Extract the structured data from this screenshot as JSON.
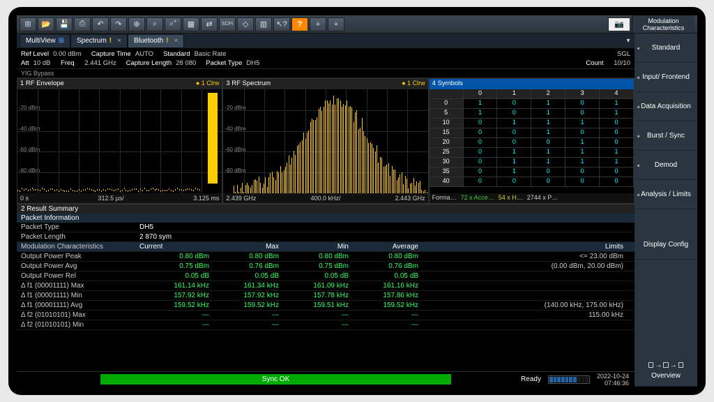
{
  "toolbar": {
    "mod_char_line1": "Modulation",
    "mod_char_line2": "Characteristics"
  },
  "tabs": {
    "multiview": "MultiView",
    "spectrum": "Spectrum",
    "bluetooth": "Bluetooth"
  },
  "info": {
    "ref_level_lbl": "Ref Level",
    "ref_level_val": "0.00 dBm",
    "att_lbl": "Att",
    "att_val": "10 dB",
    "freq_lbl": "Freq",
    "freq_val": "2.441 GHz",
    "cap_time_lbl": "Capture Time",
    "cap_time_val": "AUTO",
    "cap_len_lbl": "Capture Length",
    "cap_len_val": "28 080",
    "std_lbl": "Standard",
    "std_val": "Basic Rate",
    "pkt_type_lbl": "Packet Type",
    "pkt_type_val": "DH5",
    "sgl": "SGL",
    "count_lbl": "Count",
    "count_val": "10/10",
    "yig": "YIG Bypass"
  },
  "panels": {
    "env_title": "1 RF Envelope",
    "env_ind": "● 1 Clrw",
    "env_x0": "0 s",
    "env_xmid": "312.5 µs/",
    "env_xend": "3.125 ms",
    "spec_title": "3 RF Spectrum",
    "spec_ind": "● 1 Clrw",
    "spec_x0": "2.439 GHz",
    "spec_xmid": "400.0 kHz/",
    "spec_xend": "2.443 GHz",
    "sym_title": "4 Symbols",
    "sym_cols": [
      "",
      "0",
      "1",
      "2",
      "3",
      "4"
    ],
    "sym_rows": [
      {
        "h": "0",
        "v": [
          "1",
          "0",
          "1",
          "0",
          "1"
        ]
      },
      {
        "h": "5",
        "v": [
          "1",
          "0",
          "1",
          "0",
          "1"
        ]
      },
      {
        "h": "10",
        "v": [
          "0",
          "1",
          "1",
          "1",
          "0"
        ]
      },
      {
        "h": "15",
        "v": [
          "0",
          "0",
          "1",
          "0",
          "0"
        ]
      },
      {
        "h": "20",
        "v": [
          "0",
          "0",
          "0",
          "1",
          "0"
        ]
      },
      {
        "h": "25",
        "v": [
          "0",
          "1",
          "1",
          "1",
          "1"
        ]
      },
      {
        "h": "30",
        "v": [
          "0",
          "1",
          "1",
          "1",
          "1"
        ]
      },
      {
        "h": "35",
        "v": [
          "0",
          "1",
          "0",
          "0",
          "0"
        ]
      },
      {
        "h": "40",
        "v": [
          "0",
          "0",
          "0",
          "0",
          "0"
        ]
      }
    ],
    "sym_footer_forma": "Forma…",
    "sym_footer_acce": "72 x Acce…",
    "sym_footer_h": "54 x H…",
    "sym_footer_p": "2744 x P…"
  },
  "results": {
    "title": "2 Result Summary",
    "pkt_info": "Packet Information",
    "pkt_type_lbl": "Packet Type",
    "pkt_type_val": "DH5",
    "pkt_len_lbl": "Packet Length",
    "pkt_len_val": "2 870 sym",
    "mod_char": "Modulation Characteristics",
    "hdr_cur": "Current",
    "hdr_max": "Max",
    "hdr_min": "Min",
    "hdr_avg": "Average",
    "hdr_lim": "Limits",
    "rows": [
      {
        "n": "Output Power Peak",
        "c": "0.80 dBm",
        "max": "0.80 dBm",
        "min": "0.80 dBm",
        "avg": "0.80 dBm",
        "lim": "<= 23.00 dBm"
      },
      {
        "n": "Output Power Avg",
        "c": "0.75 dBm",
        "max": "0.76 dBm",
        "min": "0.75 dBm",
        "avg": "0.76 dBm",
        "lim": "(0.00 dBm, 20.00 dBm)"
      },
      {
        "n": "Output Power Rel",
        "c": "0.05 dB",
        "max": "0.05 dB",
        "min": "0.05 dB",
        "avg": "0.05 dB",
        "lim": ""
      },
      {
        "n": "Δ f1 (00001111) Max",
        "c": "161.14 kHz",
        "max": "161.34 kHz",
        "min": "161.09 kHz",
        "avg": "161.16 kHz",
        "lim": ""
      },
      {
        "n": "Δ f1 (00001111) Min",
        "c": "157.92 kHz",
        "max": "157.92 kHz",
        "min": "157.78 kHz",
        "avg": "157.86 kHz",
        "lim": ""
      },
      {
        "n": "Δ f1 (00001111) Avg",
        "c": "159.52 kHz",
        "max": "159.52 kHz",
        "min": "159.51 kHz",
        "avg": "159.52 kHz",
        "lim": "(140.00 kHz, 175.00 kHz)"
      },
      {
        "n": "Δ f2 (01010101) Max",
        "c": "---",
        "max": "---",
        "min": "---",
        "avg": "---",
        "lim": "115.00 kHz"
      },
      {
        "n": "Δ f2 (01010101) Min",
        "c": "---",
        "max": "---",
        "min": "---",
        "avg": "---",
        "lim": ""
      }
    ]
  },
  "status": {
    "sync": "Sync OK",
    "ready": "Ready",
    "date": "2022-10-24",
    "time": "07:46:36"
  },
  "sidebar": {
    "standard": "Standard",
    "input": "Input/ Frontend",
    "data": "Data Acquisition",
    "burst": "Burst / Sync",
    "demod": "Demod",
    "analysis": "Analysis / Limits",
    "display": "Display Config",
    "overview": "Overview"
  },
  "chart": {
    "env_ylabels": [
      "-20 dBm",
      "-40 dBm",
      "-60 dBm",
      "-80 dBm"
    ],
    "spec_ylabels": [
      "-20 dBm",
      "-40 dBm",
      "-60 dBm",
      "-80 dBm"
    ],
    "spec_profile": [
      5,
      6,
      8,
      10,
      12,
      15,
      18,
      22,
      28,
      35,
      42,
      50,
      60,
      72,
      85,
      98,
      110,
      120,
      128,
      132,
      135,
      132,
      128,
      120,
      110,
      98,
      85,
      72,
      60,
      50,
      42,
      35,
      28,
      22,
      18,
      15,
      12,
      10,
      8,
      6,
      5
    ]
  }
}
